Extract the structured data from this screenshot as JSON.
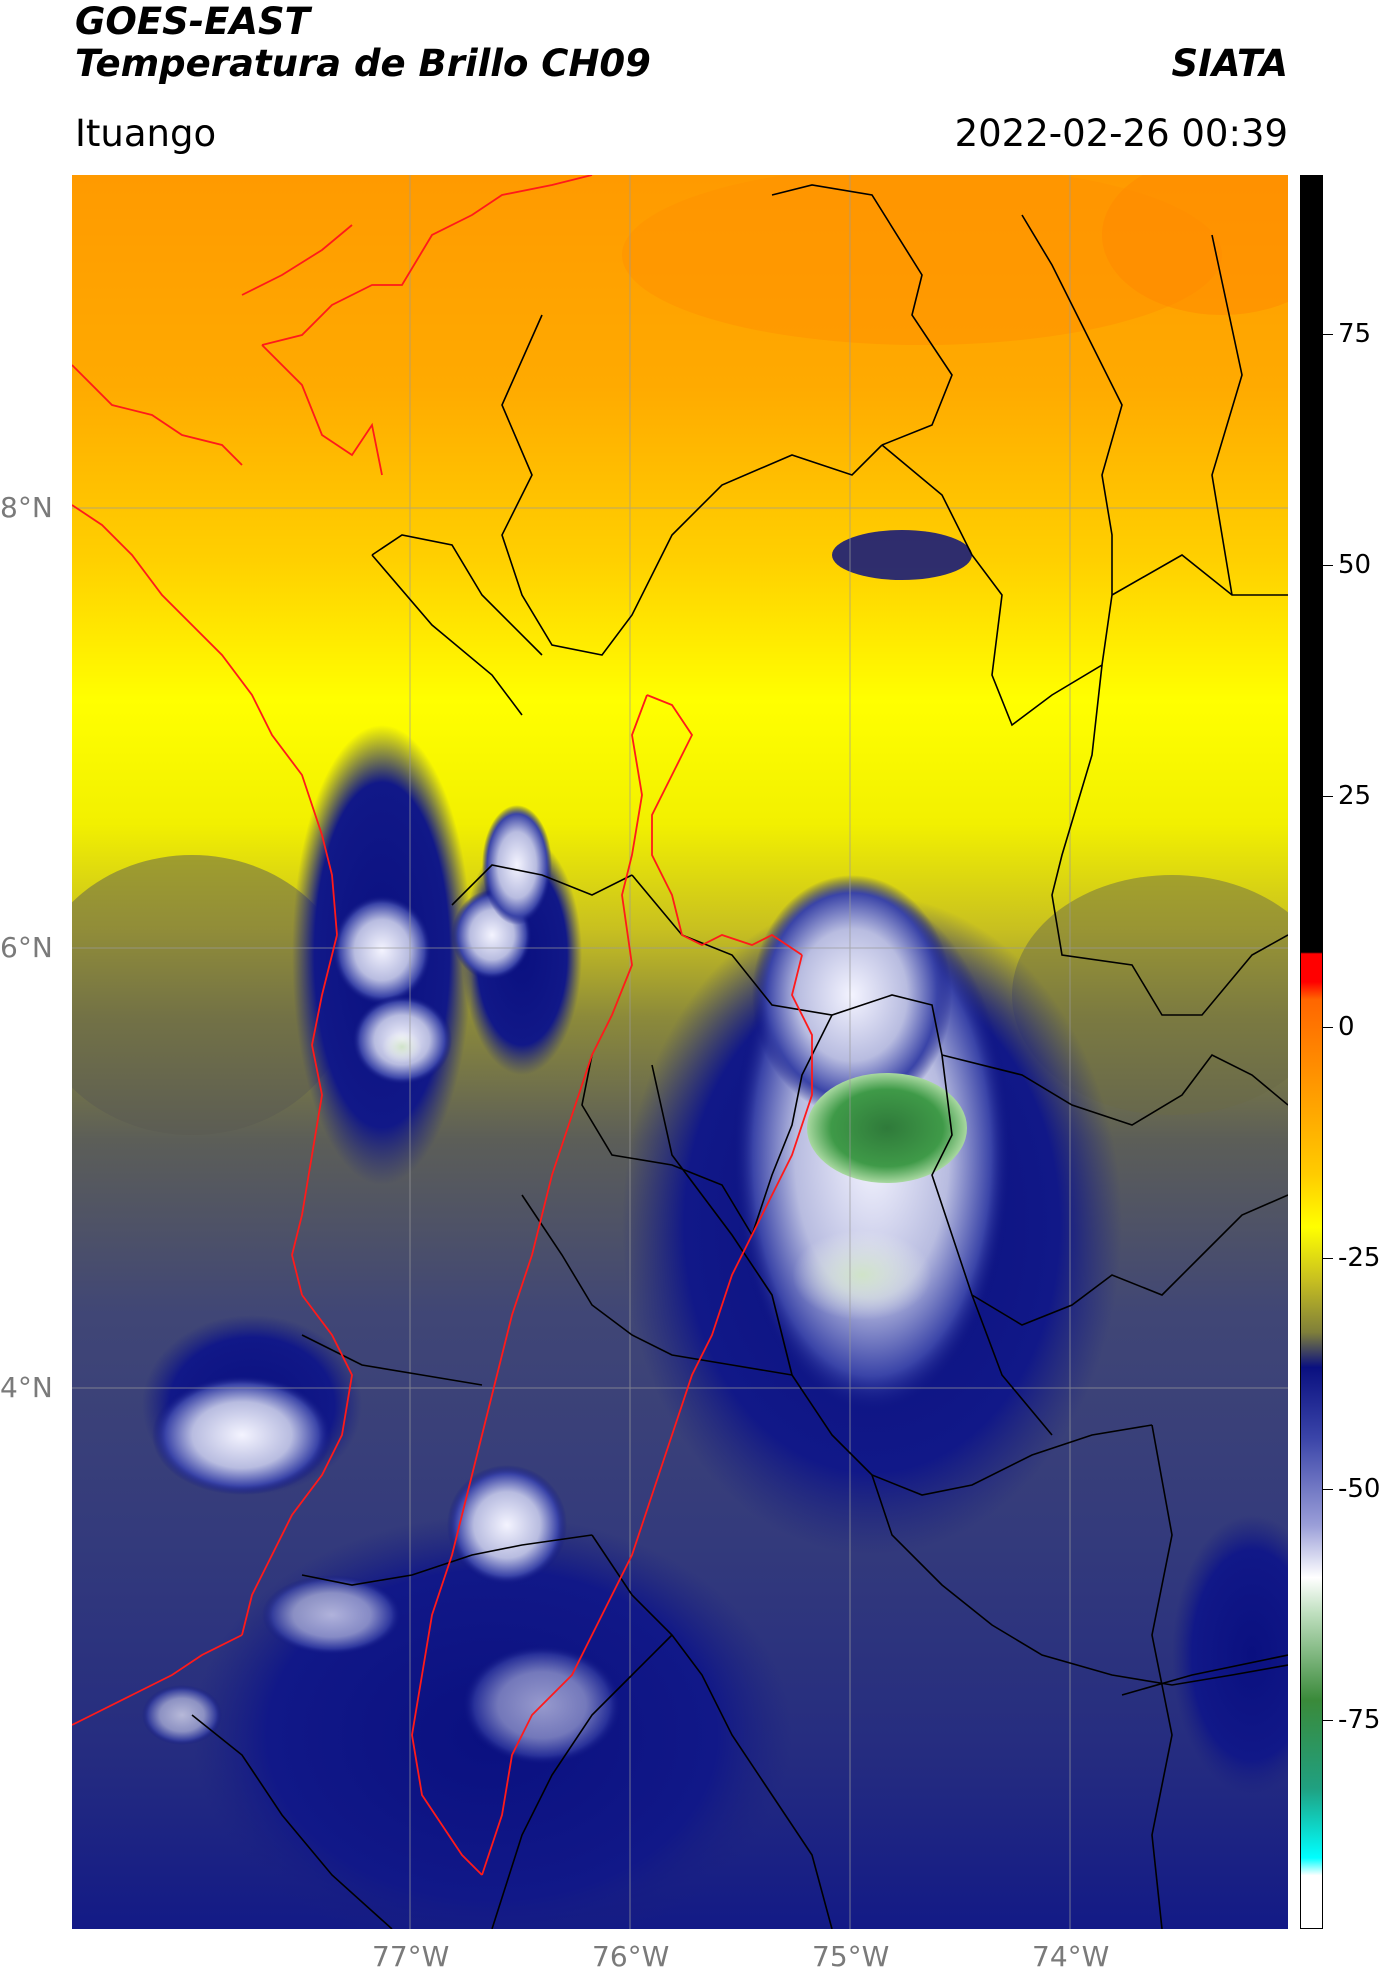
{
  "header": {
    "satellite": "GOES-EAST",
    "product": "Temperatura de Brillo CH09",
    "organization": "SIATA",
    "region": "Ituango",
    "datetime": "2022-02-26 00:39"
  },
  "map": {
    "lat_labels": [
      "8°N",
      "6°N",
      "4°N"
    ],
    "lon_labels": [
      "77°W",
      "76°W",
      "75°W",
      "74°W"
    ],
    "border_colors": {
      "region": "#ff1a1a",
      "departments": "#000000"
    }
  },
  "colorbar": {
    "ticks": [
      "75",
      "50",
      "25",
      "0",
      "-25",
      "-50",
      "-75"
    ],
    "colors": {
      "black": "#000000",
      "red": "#ff0000",
      "orange": "#ff9900",
      "yellow": "#ffff00",
      "olive": "#7f7f3a",
      "navy": "#0a1080",
      "white": "#ffffff",
      "green": "#3a8a3a",
      "cyan": "#00ffff"
    }
  }
}
